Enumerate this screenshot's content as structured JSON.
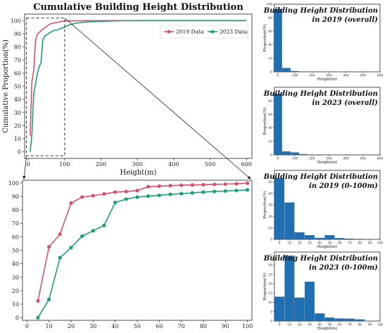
{
  "colors": {
    "series_2019": "#d9506a",
    "series_2023": "#1a9e7a",
    "bar": "#1f6fb4",
    "zoom_box": "#333333"
  },
  "chart_data": [
    {
      "id": "cumulative_overall",
      "type": "line",
      "title": "Cumulative Building Height Distribution",
      "xlabel": "Height(m)",
      "ylabel": "Cumulative Proportion(%)",
      "xlim": [
        -10,
        615
      ],
      "ylim": [
        -5,
        105
      ],
      "xticks": [
        0,
        100,
        200,
        300,
        400,
        500,
        600
      ],
      "yticks": [
        0,
        10,
        20,
        30,
        40,
        50,
        60,
        70,
        80,
        90,
        100
      ],
      "legend": "top-right",
      "series": [
        {
          "name": "2019 Data",
          "color_key": "series_2019",
          "x": [
            5,
            10,
            15,
            20,
            25,
            30,
            40,
            50,
            60,
            70,
            80,
            90,
            100,
            120,
            150,
            200,
            300,
            400,
            500,
            600
          ],
          "y": [
            12,
            53,
            62,
            85,
            89.5,
            91,
            93.5,
            95.5,
            97.5,
            98.2,
            98.8,
            99.3,
            99.7,
            99.85,
            99.95,
            100,
            100,
            100,
            100,
            100
          ]
        },
        {
          "name": "2023 Data",
          "color_key": "series_2023",
          "x": [
            5,
            10,
            15,
            20,
            25,
            30,
            35,
            40,
            45,
            50,
            55,
            60,
            70,
            80,
            90,
            100,
            110,
            130,
            160,
            200,
            250,
            300,
            400,
            500,
            600
          ],
          "y": [
            0,
            13,
            44,
            52,
            60,
            65,
            68,
            85,
            88,
            89,
            90,
            91,
            92.5,
            93,
            94,
            95,
            96.5,
            98,
            99,
            99.5,
            99.9,
            100,
            100,
            100,
            100
          ]
        }
      ]
    },
    {
      "id": "cumulative_zoom",
      "type": "line",
      "xlim": [
        -2,
        102
      ],
      "ylim": [
        -2,
        102
      ],
      "xticks": [
        0,
        10,
        20,
        30,
        40,
        50,
        60,
        70,
        80,
        90,
        100
      ],
      "yticks": [
        0,
        10,
        20,
        30,
        40,
        50,
        60,
        70,
        80,
        90,
        100
      ],
      "series": [
        {
          "name": "2019 Data",
          "color_key": "series_2019",
          "x": [
            5,
            10,
            15,
            20,
            25,
            30,
            35,
            40,
            45,
            50,
            55,
            60,
            65,
            70,
            75,
            80,
            85,
            90,
            95,
            100
          ],
          "y": [
            12.5,
            52.5,
            62,
            85,
            89.5,
            90.5,
            91.8,
            93.2,
            93.6,
            94.3,
            97.2,
            97.6,
            98,
            98.3,
            98.5,
            98.7,
            98.9,
            99.1,
            99.4,
            99.8
          ]
        },
        {
          "name": "2023 Data",
          "color_key": "series_2023",
          "x": [
            5,
            10,
            15,
            20,
            25,
            30,
            35,
            40,
            45,
            50,
            55,
            60,
            65,
            70,
            75,
            80,
            85,
            90,
            95,
            100
          ],
          "y": [
            0,
            13.5,
            44.5,
            52,
            60.5,
            64.5,
            68.5,
            85.5,
            88,
            89.5,
            90.2,
            90.8,
            91.5,
            92,
            92.6,
            93.2,
            93.6,
            94,
            94.4,
            94.8
          ]
        }
      ]
    },
    {
      "id": "hist_2019_overall",
      "type": "bar",
      "title": "Building Height Distribution in 2019 (overall)",
      "xlabel": "Height(m)",
      "ylabel": "Proportion(%)",
      "xlim": [
        -20,
        600
      ],
      "ylim": [
        0,
        100
      ],
      "xticks": [
        0,
        100,
        200,
        300,
        400,
        500,
        600
      ],
      "yticks": [
        0,
        20,
        40,
        60,
        80,
        100
      ],
      "bin_width": 50,
      "x": [
        0,
        50,
        100,
        150,
        200
      ],
      "values": [
        93,
        5.5,
        1,
        0.3,
        0.2
      ]
    },
    {
      "id": "hist_2023_overall",
      "type": "bar",
      "title": "Building Height Distribution in 2023 (overall)",
      "xlabel": "Height(m)",
      "ylabel": "Proportion(%)",
      "xlim": [
        -20,
        600
      ],
      "ylim": [
        0,
        100
      ],
      "xticks": [
        0,
        100,
        200,
        300,
        400,
        500,
        600
      ],
      "yticks": [
        0,
        20,
        40,
        60,
        80
      ],
      "bin_width": 50,
      "x": [
        0,
        50,
        100,
        150,
        200,
        250
      ],
      "values": [
        90,
        5,
        3.5,
        1,
        0.4,
        0.2
      ]
    },
    {
      "id": "hist_2019_0_100",
      "type": "bar",
      "title": "Building Height Distribution in 2019 (0-100m)",
      "xlabel": "Height(m)",
      "ylabel": "Proportion(%)",
      "xlim": [
        -5,
        100
      ],
      "ylim": [
        0,
        60
      ],
      "xticks": [
        0,
        10,
        20,
        30,
        40,
        50,
        60,
        70,
        80,
        90,
        100
      ],
      "yticks": [
        0,
        10,
        20,
        30,
        40,
        50
      ],
      "bin_width": 10,
      "x": [
        0,
        10,
        20,
        30,
        40,
        50,
        60,
        70,
        80
      ],
      "values": [
        53,
        32,
        6,
        3.5,
        1.2,
        3.5,
        1,
        0.5,
        0.3
      ]
    },
    {
      "id": "hist_2023_0_100",
      "type": "bar",
      "title": "Building Height Distribution in 2023 (0-100m)",
      "xlabel": "Height(m)",
      "ylabel": "Proportion(%)",
      "xlim": [
        -5,
        100
      ],
      "ylim": [
        0,
        37
      ],
      "xticks": [
        0,
        10,
        20,
        30,
        40,
        50,
        60,
        70,
        80,
        90,
        100
      ],
      "yticks": [
        0,
        5,
        10,
        15,
        20,
        25,
        30,
        35
      ],
      "bin_width": 10,
      "x": [
        0,
        10,
        20,
        30,
        40,
        50,
        60,
        70,
        80
      ],
      "values": [
        13,
        35,
        12.5,
        21,
        4,
        1.8,
        1.3,
        1.2,
        0.8
      ]
    }
  ]
}
